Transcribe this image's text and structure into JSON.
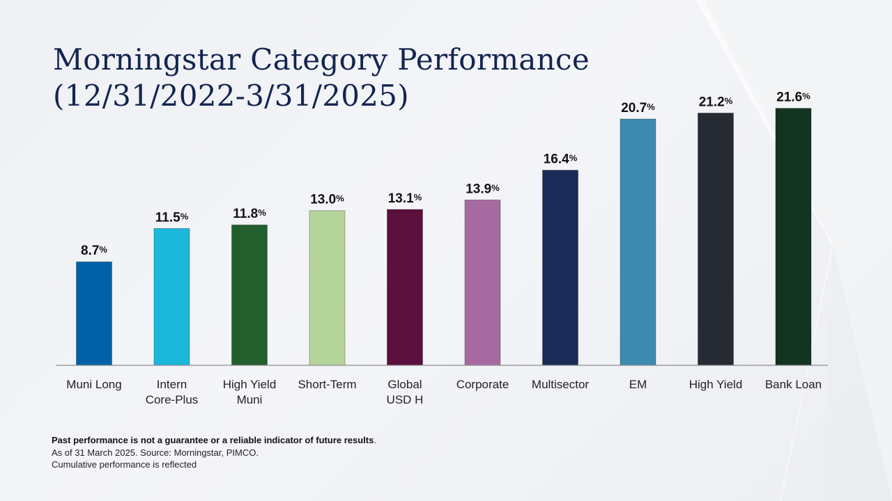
{
  "slide": {
    "title_line1": "Morningstar Category Performance",
    "title_line2": "(12/31/2022-3/31/2025)"
  },
  "chart_data": {
    "type": "bar",
    "title": "",
    "xlabel": "",
    "ylabel": "",
    "value_suffix": "%",
    "ylim": [
      0,
      25
    ],
    "grid": false,
    "legend": "none",
    "categories": [
      [
        "Muni  Long"
      ],
      [
        "Intern",
        "Core-Plus"
      ],
      [
        "High Yield",
        "Muni"
      ],
      [
        "Short-Term"
      ],
      [
        "Global",
        "USD H"
      ],
      [
        "Corporate"
      ],
      [
        "Multisector"
      ],
      [
        "EM"
      ],
      [
        "High Yield"
      ],
      [
        "Bank Loan"
      ]
    ],
    "values": [
      8.7,
      11.5,
      11.8,
      13.0,
      13.1,
      13.9,
      16.4,
      20.7,
      21.2,
      21.6
    ],
    "value_labels": [
      "8.7",
      "11.5",
      "11.8",
      "13.0",
      "13.1",
      "13.9",
      "16.4",
      "20.7",
      "21.2",
      "21.6"
    ],
    "colors": [
      "#0061a7",
      "#1bb8dc",
      "#235e2d",
      "#b5d49c",
      "#5a0f3d",
      "#a76aa0",
      "#1a2b57",
      "#3c8ab0",
      "#262a33",
      "#133420"
    ]
  },
  "footnotes": {
    "disclaimer": "Past performance is not a guarantee or a reliable indicator of future results",
    "disclaimer_end": ".",
    "source": "As of 31 March 2025. Source: Morningstar, PIMCO.",
    "note": "Cumulative performance is reflected"
  }
}
